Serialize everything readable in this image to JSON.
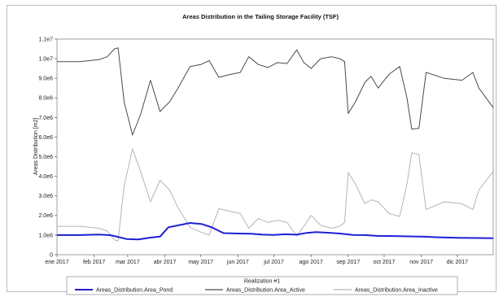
{
  "chart_data": {
    "type": "line",
    "title": "Areas Distribution in the Tailing Storage Facility (TSF)",
    "xlabel": "",
    "ylabel": "Areas Distribution [m2]",
    "ylim": [
      0,
      11000000
    ],
    "y_tick_labels": [
      "0",
      "1.0e6",
      "2.0e6",
      "3.0e6",
      "4.0e6",
      "5.0e6",
      "6.0e6",
      "7.0e6",
      "8.0e6",
      "9.0e6",
      "1.0e7",
      "1.1e7"
    ],
    "y_tick_values": [
      0,
      1000000,
      2000000,
      3000000,
      4000000,
      5000000,
      6000000,
      7000000,
      8000000,
      9000000,
      10000000,
      11000000
    ],
    "x_range": [
      "2017-01-01",
      "2017-12-31"
    ],
    "x_tick_labels": [
      "ene 2017",
      "feb 2017",
      "mar 2017",
      "abr 2017",
      "may 2017",
      "jun 2017",
      "jul 2017",
      "ago 2017",
      "sep 2017",
      "oct 2017",
      "nov 2017",
      "dic 2017"
    ],
    "x_tick_dates": [
      "2017-01-01",
      "2017-02-01",
      "2017-03-01",
      "2017-04-01",
      "2017-05-01",
      "2017-06-01",
      "2017-07-01",
      "2017-08-01",
      "2017-09-01",
      "2017-10-01",
      "2017-11-01",
      "2017-12-01"
    ],
    "grid": false,
    "legend_title": "Realization #1",
    "legend_placement": "bottom",
    "series": [
      {
        "name": "Areas_Distribution.Area_Pond",
        "color": "#1f1fd6",
        "points": [
          [
            "2017-01-01",
            1000000
          ],
          [
            "2017-01-20",
            1000000
          ],
          [
            "2017-02-05",
            1030000
          ],
          [
            "2017-02-15",
            990000
          ],
          [
            "2017-02-28",
            800000
          ],
          [
            "2017-03-10",
            780000
          ],
          [
            "2017-03-20",
            870000
          ],
          [
            "2017-03-28",
            920000
          ],
          [
            "2017-04-04",
            1400000
          ],
          [
            "2017-04-14",
            1520000
          ],
          [
            "2017-04-22",
            1620000
          ],
          [
            "2017-05-02",
            1560000
          ],
          [
            "2017-05-10",
            1400000
          ],
          [
            "2017-05-20",
            1100000
          ],
          [
            "2017-06-01",
            1080000
          ],
          [
            "2017-06-12",
            1070000
          ],
          [
            "2017-06-22",
            1020000
          ],
          [
            "2017-07-01",
            1010000
          ],
          [
            "2017-07-10",
            1040000
          ],
          [
            "2017-07-20",
            1020000
          ],
          [
            "2017-07-28",
            1110000
          ],
          [
            "2017-08-05",
            1150000
          ],
          [
            "2017-08-15",
            1120000
          ],
          [
            "2017-08-25",
            1080000
          ],
          [
            "2017-09-05",
            1010000
          ],
          [
            "2017-09-15",
            1000000
          ],
          [
            "2017-09-25",
            960000
          ],
          [
            "2017-10-10",
            950000
          ],
          [
            "2017-11-01",
            920000
          ],
          [
            "2017-11-15",
            890000
          ],
          [
            "2017-12-01",
            860000
          ],
          [
            "2017-12-31",
            840000
          ]
        ]
      },
      {
        "name": "Areas_Distribution.Area_Active",
        "color": "#4a4a4a",
        "points": [
          [
            "2017-01-01",
            9850000
          ],
          [
            "2017-01-20",
            9850000
          ],
          [
            "2017-02-05",
            9950000
          ],
          [
            "2017-02-12",
            10100000
          ],
          [
            "2017-02-18",
            10500000
          ],
          [
            "2017-02-21",
            10550000
          ],
          [
            "2017-02-26",
            7800000
          ],
          [
            "2017-03-05",
            6100000
          ],
          [
            "2017-03-12",
            7200000
          ],
          [
            "2017-03-20",
            8900000
          ],
          [
            "2017-03-28",
            7300000
          ],
          [
            "2017-04-05",
            7800000
          ],
          [
            "2017-04-12",
            8500000
          ],
          [
            "2017-04-22",
            9600000
          ],
          [
            "2017-05-01",
            9700000
          ],
          [
            "2017-05-08",
            9900000
          ],
          [
            "2017-05-16",
            9050000
          ],
          [
            "2017-05-26",
            9200000
          ],
          [
            "2017-06-03",
            9300000
          ],
          [
            "2017-06-10",
            10100000
          ],
          [
            "2017-06-18",
            9700000
          ],
          [
            "2017-06-26",
            9550000
          ],
          [
            "2017-07-04",
            9800000
          ],
          [
            "2017-07-12",
            9750000
          ],
          [
            "2017-07-20",
            10450000
          ],
          [
            "2017-07-26",
            9800000
          ],
          [
            "2017-08-01",
            9500000
          ],
          [
            "2017-08-09",
            10000000
          ],
          [
            "2017-08-18",
            10100000
          ],
          [
            "2017-08-25",
            10000000
          ],
          [
            "2017-08-29",
            9850000
          ],
          [
            "2017-09-01",
            7200000
          ],
          [
            "2017-09-07",
            7800000
          ],
          [
            "2017-09-15",
            8800000
          ],
          [
            "2017-09-20",
            9100000
          ],
          [
            "2017-09-26",
            8500000
          ],
          [
            "2017-10-05",
            9200000
          ],
          [
            "2017-10-14",
            9600000
          ],
          [
            "2017-10-20",
            8000000
          ],
          [
            "2017-10-24",
            6400000
          ],
          [
            "2017-10-30",
            6450000
          ],
          [
            "2017-11-05",
            9300000
          ],
          [
            "2017-11-20",
            9000000
          ],
          [
            "2017-12-05",
            8900000
          ],
          [
            "2017-12-14",
            9300000
          ],
          [
            "2017-12-19",
            8500000
          ],
          [
            "2017-12-31",
            7500000
          ]
        ]
      },
      {
        "name": "Areas_Distribution.Area_Inactive",
        "color": "#b5b5b5",
        "points": [
          [
            "2017-01-01",
            1450000
          ],
          [
            "2017-01-20",
            1450000
          ],
          [
            "2017-02-05",
            1350000
          ],
          [
            "2017-02-12",
            1200000
          ],
          [
            "2017-02-18",
            750000
          ],
          [
            "2017-02-21",
            700000
          ],
          [
            "2017-02-26",
            3500000
          ],
          [
            "2017-03-05",
            5400000
          ],
          [
            "2017-03-12",
            4200000
          ],
          [
            "2017-03-20",
            2700000
          ],
          [
            "2017-03-28",
            3800000
          ],
          [
            "2017-04-05",
            3300000
          ],
          [
            "2017-04-12",
            2400000
          ],
          [
            "2017-04-22",
            1400000
          ],
          [
            "2017-05-01",
            1150000
          ],
          [
            "2017-05-08",
            1000000
          ],
          [
            "2017-05-16",
            2350000
          ],
          [
            "2017-05-26",
            2200000
          ],
          [
            "2017-06-03",
            2100000
          ],
          [
            "2017-06-10",
            1350000
          ],
          [
            "2017-06-18",
            1850000
          ],
          [
            "2017-06-26",
            1650000
          ],
          [
            "2017-07-04",
            1750000
          ],
          [
            "2017-07-12",
            1650000
          ],
          [
            "2017-07-20",
            950000
          ],
          [
            "2017-07-26",
            1450000
          ],
          [
            "2017-08-01",
            2000000
          ],
          [
            "2017-08-09",
            1500000
          ],
          [
            "2017-08-18",
            1350000
          ],
          [
            "2017-08-25",
            1450000
          ],
          [
            "2017-08-29",
            1650000
          ],
          [
            "2017-09-01",
            4200000
          ],
          [
            "2017-09-07",
            3600000
          ],
          [
            "2017-09-15",
            2600000
          ],
          [
            "2017-09-20",
            2800000
          ],
          [
            "2017-09-26",
            2700000
          ],
          [
            "2017-10-05",
            2100000
          ],
          [
            "2017-10-14",
            1950000
          ],
          [
            "2017-10-20",
            3600000
          ],
          [
            "2017-10-24",
            5200000
          ],
          [
            "2017-10-30",
            5100000
          ],
          [
            "2017-11-05",
            2300000
          ],
          [
            "2017-11-20",
            2700000
          ],
          [
            "2017-12-05",
            2600000
          ],
          [
            "2017-12-14",
            2300000
          ],
          [
            "2017-12-19",
            3300000
          ],
          [
            "2017-12-31",
            4250000
          ]
        ]
      }
    ]
  }
}
